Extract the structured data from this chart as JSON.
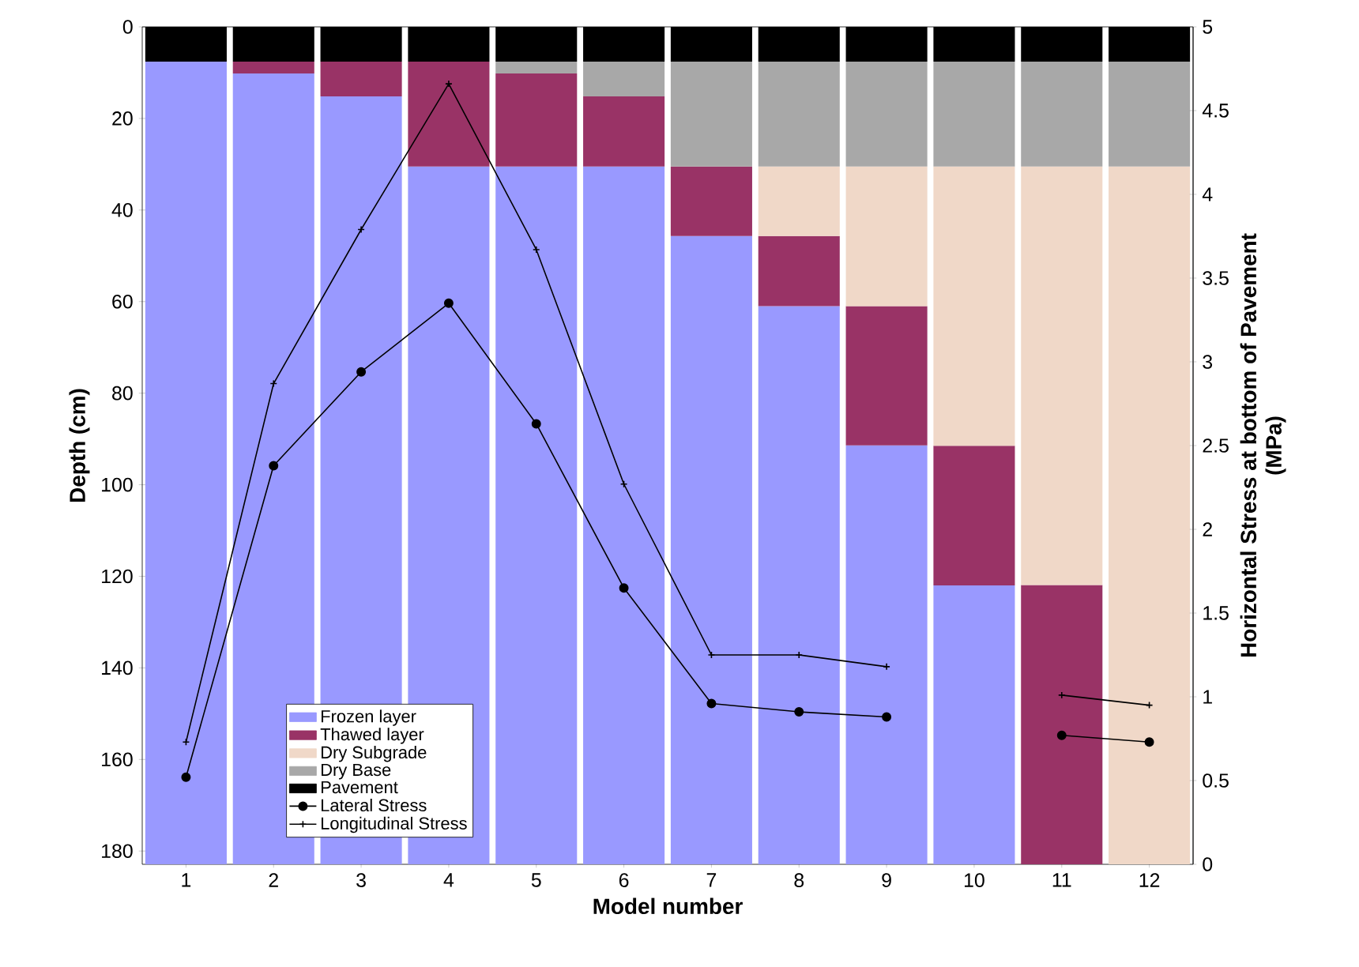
{
  "chart_data": {
    "type": "bar",
    "stacked": true,
    "xlabel": "Model number",
    "ylabel": "Depth (cm)",
    "y2label": "Horizontal Stress at bottom of Pavement  (MPa)",
    "categories": [
      "1",
      "2",
      "3",
      "4",
      "5",
      "6",
      "7",
      "8",
      "9",
      "10",
      "11",
      "12"
    ],
    "ylim": [
      182.9,
      0
    ],
    "yticks": [
      0,
      20,
      40,
      60,
      80,
      100,
      120,
      140,
      160,
      180
    ],
    "y2lim": [
      0,
      5
    ],
    "y2ticks": [
      0,
      0.5,
      1,
      1.5,
      2,
      2.5,
      3,
      3.5,
      4,
      4.5,
      5
    ],
    "legend": "bottom left",
    "series": [
      {
        "name": "Pavement",
        "color": "#000000",
        "values": [
          7.6,
          7.6,
          7.6,
          7.6,
          7.6,
          7.6,
          7.6,
          7.6,
          7.6,
          7.6,
          7.6,
          7.6
        ]
      },
      {
        "name": "Dry Base",
        "color": "#a8a8a8",
        "values": [
          0,
          0,
          0,
          0,
          2.6,
          7.6,
          22.9,
          22.9,
          22.9,
          22.9,
          22.9,
          22.9
        ]
      },
      {
        "name": "Dry Subgrade",
        "color": "#f0d8c8",
        "values": [
          0,
          0,
          0,
          0,
          0,
          0,
          0,
          15.2,
          30.5,
          61,
          91.4,
          152.4
        ]
      },
      {
        "name": "Thawed layer",
        "color": "#993366",
        "values": [
          0,
          2.6,
          7.6,
          22.9,
          20.3,
          15.3,
          15.2,
          15.3,
          30.4,
          30.5,
          61,
          0
        ]
      },
      {
        "name": "Frozen layer",
        "color": "#9999ff",
        "values": [
          175.3,
          172.7,
          167.7,
          152.4,
          152.4,
          152.4,
          137.2,
          121.9,
          91.5,
          60.9,
          0,
          0
        ]
      },
      {
        "name": "Lateral  Stress",
        "type": "line",
        "axis": "y2",
        "marker": "circle",
        "color": "#000000",
        "values": [
          0.52,
          2.38,
          2.94,
          3.35,
          2.63,
          1.65,
          0.96,
          0.91,
          0.88,
          null,
          0.77,
          0.73
        ]
      },
      {
        "name": "Longitudinal Stress",
        "type": "line",
        "axis": "y2",
        "marker": "cross",
        "color": "#000000",
        "values": [
          0.73,
          2.87,
          3.79,
          4.66,
          3.67,
          2.27,
          1.25,
          1.25,
          1.18,
          null,
          1.01,
          0.95
        ]
      }
    ]
  }
}
